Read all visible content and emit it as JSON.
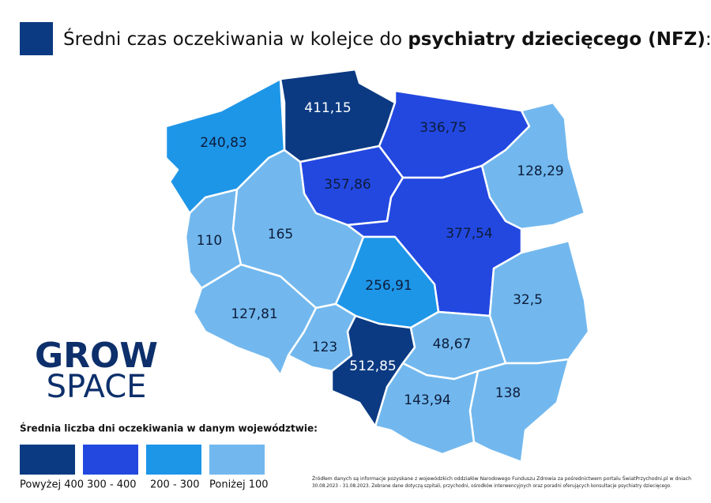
{
  "title": {
    "prefix": "Średni czas oczekiwania w kolejce do ",
    "bold": "psychiatry dziecięcego (NFZ)",
    "suffix": ":"
  },
  "regions": [
    {
      "label": "411,15"
    },
    {
      "label": "240,83"
    },
    {
      "label": "336,75"
    },
    {
      "label": "128,29"
    },
    {
      "label": "357,86"
    },
    {
      "label": "110"
    },
    {
      "label": "165"
    },
    {
      "label": "377,54"
    },
    {
      "label": "256,91"
    },
    {
      "label": "32,5"
    },
    {
      "label": "127,81"
    },
    {
      "label": "123"
    },
    {
      "label": "512,85"
    },
    {
      "label": "48,67"
    },
    {
      "label": "143,94"
    },
    {
      "label": "138"
    }
  ],
  "logo": {
    "line1": "GROW",
    "line2": "SPACE"
  },
  "legend": {
    "title": "Średnia liczba dni oczekiwania w danym województwie:",
    "items": [
      "Powyżej 400",
      "300 - 400",
      "200 - 300",
      "Poniżej 100"
    ]
  },
  "source": {
    "line1": "Źródłem danych są informacje pozyskane z wojewódzkich oddziałów Narodowego Funduszu Zdrowia za pośrednictwem portalu ŚwiatPrzychodni.pl w dniach",
    "line2": "30.08.2023 - 31.08.2023. Zebrane dane dotyczą szpitali, przychodni, ośrodków interwencyjnych oraz poradni oferujących konsultacje psychiatry dziecięcego."
  }
}
